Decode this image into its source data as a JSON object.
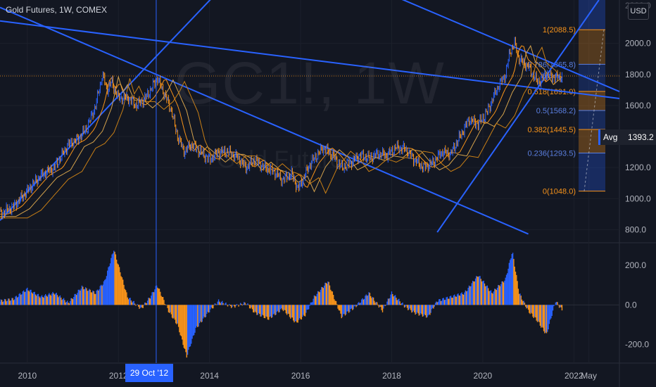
{
  "header": {
    "title": "Gold Futures, 1W, COMEX",
    "currency": "USD"
  },
  "watermark": {
    "symbol": "GC1!, 1W",
    "name": "Gold Futures"
  },
  "crosshair": {
    "date_label": "29 Oct '12",
    "x_date": 2012.83
  },
  "avg_tag": {
    "label": "Avg",
    "value": "1393.2"
  },
  "colors": {
    "background": "#131722",
    "up": "#2962ff",
    "down": "#f7931a",
    "fib_up": "#f7931a",
    "fib_blue": "#2962ff",
    "trendline": "#2962ff"
  },
  "chart_data": [
    {
      "type": "line",
      "title": "Gold Futures, 1W, COMEX",
      "xlim": [
        2009.4,
        2023.0
      ],
      "ylim": [
        720,
        2280
      ],
      "price_axis_ticks": [
        "800.0",
        "1000.0",
        "1200.0",
        "1400.0",
        "1600.0",
        "1800.0",
        "2000.0"
      ],
      "price_axis_tick_values": [
        800,
        1000,
        1200,
        1400,
        1600,
        1800,
        2000
      ],
      "price_axis_top_partial": "2200.0",
      "time_axis_ticks": [
        "2010",
        "2012",
        "2014",
        "2016",
        "2018",
        "2020",
        "2022",
        "May"
      ],
      "time_axis_tick_values": [
        2010,
        2012,
        2014,
        2016,
        2018,
        2020,
        2022,
        2022.33
      ],
      "series": [
        {
          "x": [
            2009.4,
            2009.7,
            2010.0,
            2010.3,
            2010.6,
            2010.9,
            2011.1,
            2011.3,
            2011.5,
            2011.65,
            2011.75,
            2011.85,
            2012.0,
            2012.2,
            2012.4,
            2012.6,
            2012.75,
            2012.85,
            2013.0,
            2013.15,
            2013.3,
            2013.45,
            2013.6,
            2013.8,
            2014.0,
            2014.2,
            2014.4,
            2014.6,
            2014.8,
            2015.0,
            2015.2,
            2015.4,
            2015.6,
            2015.8,
            2015.95,
            2016.2,
            2016.5,
            2016.7,
            2016.9,
            2017.1,
            2017.3,
            2017.5,
            2017.7,
            2017.9,
            2018.1,
            2018.3,
            2018.5,
            2018.7,
            2018.9,
            2019.1,
            2019.3,
            2019.5,
            2019.7,
            2019.9,
            2020.1,
            2020.3,
            2020.5,
            2020.6,
            2020.7,
            2020.8,
            2021.0,
            2021.2,
            2021.4,
            2021.6,
            2021.75
          ],
          "y": [
            900,
            950,
            1050,
            1150,
            1200,
            1350,
            1380,
            1450,
            1600,
            1800,
            1700,
            1750,
            1650,
            1650,
            1600,
            1650,
            1720,
            1780,
            1680,
            1580,
            1400,
            1300,
            1350,
            1300,
            1250,
            1300,
            1300,
            1270,
            1200,
            1250,
            1200,
            1180,
            1120,
            1160,
            1060,
            1220,
            1330,
            1280,
            1200,
            1230,
            1280,
            1260,
            1290,
            1280,
            1330,
            1320,
            1250,
            1200,
            1230,
            1300,
            1290,
            1400,
            1510,
            1480,
            1560,
            1700,
            1800,
            1950,
            2000,
            1900,
            1850,
            1750,
            1800,
            1780,
            1790
          ]
        }
      ],
      "fib_levels": [
        {
          "label": "1(2088.5)",
          "value": 2088.5
        },
        {
          "label": "0.786(1865.8)",
          "value": 1865.8
        },
        {
          "label": "0.618(1691.0)",
          "value": 1691.0
        },
        {
          "label": "0.5(1568.2)",
          "value": 1568.2
        },
        {
          "label": "0.382(1445.5)",
          "value": 1445.5
        },
        {
          "label": "0.236(1293.5)",
          "value": 1293.5
        },
        {
          "label": "0(1048.0)",
          "value": 1048.0
        }
      ],
      "trendlines": [
        {
          "from": [
            2009.4,
            2145
          ],
          "to": [
            2023.0,
            1645
          ]
        },
        {
          "from": [
            2009.4,
            2232
          ],
          "to": [
            2021.0,
            772
          ]
        },
        {
          "from": [
            2009.4,
            860
          ],
          "to": [
            2014.4,
            2400
          ]
        },
        {
          "from": [
            2019.0,
            783
          ],
          "to": [
            2022.55,
            2280
          ]
        },
        {
          "from": [
            2018.1,
            2300
          ],
          "to": [
            2023.0,
            1690
          ]
        }
      ]
    },
    {
      "type": "bar",
      "title": "",
      "ylim": [
        -290,
        310
      ],
      "oscillator_axis_ticks": [
        "200.0",
        "0.0",
        "-200.0"
      ],
      "oscillator_axis_tick_values": [
        200,
        0,
        -200
      ],
      "x": [
        2009.4,
        2009.7,
        2010.0,
        2010.3,
        2010.6,
        2010.9,
        2011.2,
        2011.5,
        2011.7,
        2011.9,
        2012.2,
        2012.5,
        2012.7,
        2012.85,
        2013.1,
        2013.3,
        2013.5,
        2013.7,
        2014.0,
        2014.2,
        2014.5,
        2014.8,
        2015.0,
        2015.3,
        2015.6,
        2015.9,
        2016.1,
        2016.3,
        2016.6,
        2016.9,
        2017.2,
        2017.5,
        2017.8,
        2018.0,
        2018.3,
        2018.5,
        2018.8,
        2019.0,
        2019.3,
        2019.6,
        2019.9,
        2020.2,
        2020.5,
        2020.65,
        2020.8,
        2021.0,
        2021.2,
        2021.4,
        2021.6,
        2021.75
      ],
      "values": [
        20,
        30,
        80,
        40,
        60,
        10,
        90,
        60,
        120,
        280,
        40,
        -20,
        40,
        100,
        -30,
        -100,
        -260,
        -120,
        -30,
        20,
        -10,
        10,
        -40,
        -70,
        -20,
        -90,
        -50,
        40,
        120,
        -60,
        -10,
        60,
        -30,
        60,
        -10,
        -40,
        -60,
        20,
        40,
        60,
        150,
        60,
        130,
        270,
        60,
        -30,
        -80,
        -150,
        20,
        -30
      ]
    }
  ]
}
